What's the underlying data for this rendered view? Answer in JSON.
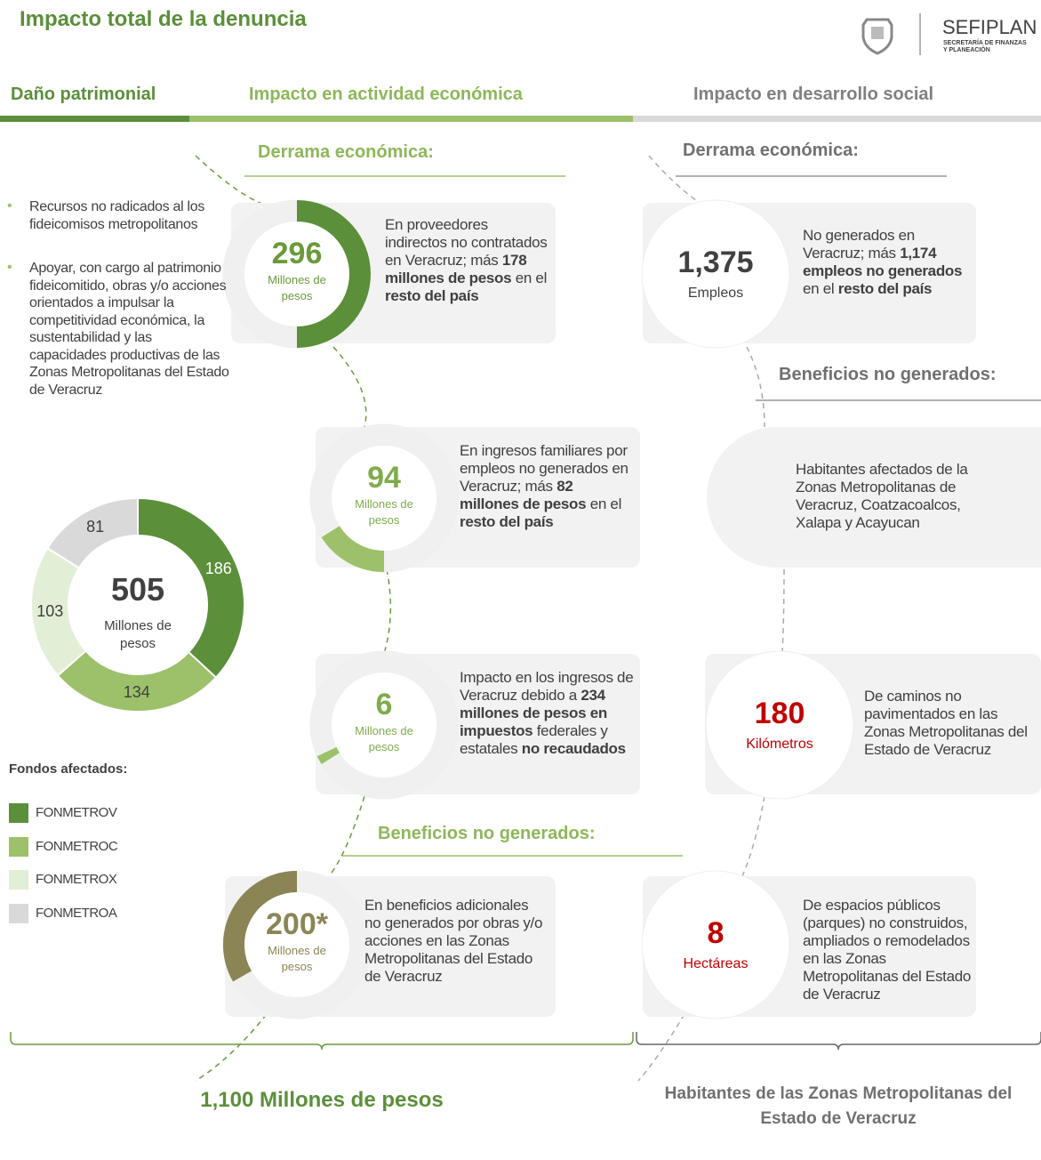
{
  "header": {
    "title": "Impacto total de la denuncia",
    "logo": {
      "name": "SEFIPLAN",
      "subtitle_lines": [
        "SECRETARÍA DE FINANZAS",
        "Y PLANEACIÓN"
      ]
    }
  },
  "tabs": [
    "Daño patrimonial",
    "Impacto en actividad económica",
    "Impacto en desarrollo social"
  ],
  "damage": {
    "bullets": [
      "Recursos no radicados al los fideicomisos metropolitanos",
      "Apoyar, con cargo al patrimonio fideicomitido, obras y/o acciones orientados a impulsar la competitividad económica, la sustentabilidad y las capacidades productivas de las Zonas Metropolitanas del Estado de Veracruz"
    ],
    "donut": {
      "total": "505",
      "unit": "Millones de pesos",
      "segments": [
        {
          "name": "FONMETROV",
          "value": 186,
          "color": "#5b8f3a"
        },
        {
          "name": "FONMETROC",
          "value": 134,
          "color": "#9cc16a"
        },
        {
          "name": "FONMETROX",
          "value": 103,
          "color": "#e2efd6"
        },
        {
          "name": "FONMETROA",
          "value": 81,
          "color": "#d9d9d9"
        }
      ]
    },
    "legend_title": "Fondos afectados:"
  },
  "economic": {
    "headings": [
      "Derrama económica:",
      "Beneficios no generados:"
    ],
    "cards": [
      {
        "value": "296",
        "unit": "Millones de pesos",
        "color": "#6a9a3a",
        "description": [
          {
            "text": "En proveedores indirectos no contratados en Veracruz; más "
          },
          {
            "text": "178 millones de pesos",
            "bold": true
          },
          {
            "text": " en el "
          },
          {
            "text": "resto del país",
            "bold": true
          }
        ]
      },
      {
        "value": "94",
        "unit": "Millones de pesos",
        "color": "#7fab4b",
        "description": [
          {
            "text": "En ingresos familiares por empleos no generados en Veracruz; más "
          },
          {
            "text": "82 millones de pesos",
            "bold": true
          },
          {
            "text": " en el "
          },
          {
            "text": "resto del país",
            "bold": true
          }
        ]
      },
      {
        "value": "6",
        "unit": "Millones de pesos",
        "color": "#7fab4b",
        "description": [
          {
            "text": "Impacto en los ingresos de Veracruz debido a "
          },
          {
            "text": "234 millones de pesos en impuestos",
            "bold": true
          },
          {
            "text": " federales y estatales "
          },
          {
            "text": "no recaudados",
            "bold": true
          }
        ]
      },
      {
        "value": "200*",
        "unit": "Millones de pesos",
        "color": "#8b8455",
        "description": [
          {
            "text": "En beneficios adicionales no generados por obras y/o acciones en las Zonas Metropolitanas del Estado de Veracruz"
          }
        ]
      }
    ]
  },
  "social": {
    "headings": [
      "Derrama económica:",
      "Beneficios no generados:"
    ],
    "cards": [
      {
        "value": "1,375",
        "unit": "Empleos",
        "color": "#404040",
        "description": [
          {
            "text": "No generados en Veracruz; más "
          },
          {
            "text": "1,174 empleos no generados",
            "bold": true
          },
          {
            "text": " en el "
          },
          {
            "text": "resto del país",
            "bold": true
          }
        ]
      },
      {
        "description": [
          {
            "text": "Habitantes afectados de la Zonas Metropolitanas de Veracruz, Coatzacoalcos, Xalapa y Acayucan"
          }
        ]
      },
      {
        "value": "180",
        "unit": "Kilómetros",
        "color": "#c00000",
        "description": [
          {
            "text": "De caminos no pavimentados en las Zonas Metropolitanas del Estado de Veracruz"
          }
        ]
      },
      {
        "value": "8",
        "unit": "Hectáreas",
        "color": "#c00000",
        "description": [
          {
            "text": "De espacios públicos (parques) no construidos, ampliados o remodelados en las Zonas Metropolitanas del Estado de Veracruz"
          }
        ]
      }
    ]
  },
  "totals": [
    "1,100 Millones de pesos",
    "Habitantes de las Zonas Metropolitanas del Estado de Veracruz"
  ]
}
